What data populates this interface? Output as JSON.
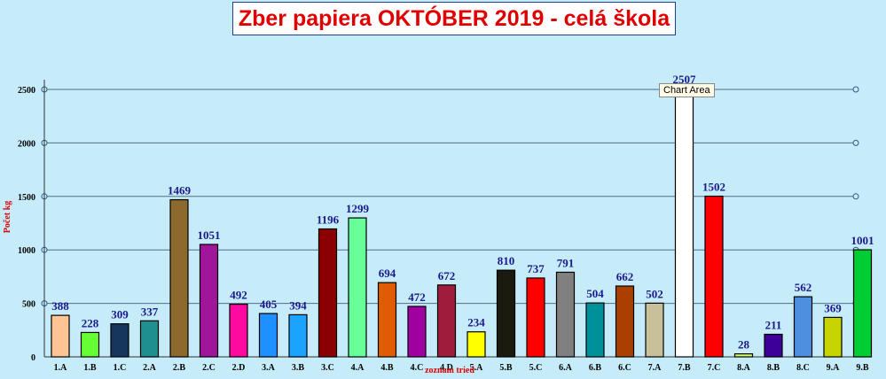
{
  "tooltip": "Chart Area",
  "chart_data": {
    "type": "bar",
    "title": "Zber papiera OKTÓBER 2019 - celá škola",
    "ylabel": "Počet kg",
    "xlabel": "zoznam tried",
    "ylim": [
      0,
      2500
    ],
    "yticks": [
      "0",
      "500",
      "1000",
      "1500",
      "2000",
      "2500"
    ],
    "grid": true,
    "title_color": "#e00000",
    "label_color": "#1a1a8c",
    "categories": [
      "1.A",
      "1.B",
      "1.C",
      "2.A",
      "2.B",
      "2.C",
      "2.D",
      "3.A",
      "3.B",
      "3.C",
      "4.A",
      "4.B",
      "4.C",
      "4.D",
      "5.A",
      "5.B",
      "5.C",
      "6.A",
      "6.B",
      "6.C",
      "7.A",
      "7.B",
      "7.C",
      "8.A",
      "8.B",
      "8.C",
      "9.A",
      "9.B"
    ],
    "values": [
      388,
      228,
      309,
      337,
      1469,
      1051,
      492,
      405,
      394,
      1196,
      1299,
      694,
      472,
      672,
      234,
      810,
      737,
      791,
      504,
      662,
      502,
      2507,
      1502,
      28,
      211,
      562,
      369,
      1001
    ],
    "colors": [
      "#ffc494",
      "#66ff33",
      "#17365d",
      "#1f8f8f",
      "#8c6a2e",
      "#a0169b",
      "#ff0aa0",
      "#1e90ff",
      "#1aa3ff",
      "#8b0000",
      "#66ff99",
      "#e05c00",
      "#a000a0",
      "#a01c3c",
      "#ffff00",
      "#1a1a0e",
      "#ff0000",
      "#808080",
      "#00909a",
      "#a94000",
      "#c8c09a",
      "#ffffff",
      "#ff0000",
      "#d4ff6a",
      "#3d0099",
      "#4f8fdf",
      "#c8d400",
      "#00cc33"
    ]
  }
}
